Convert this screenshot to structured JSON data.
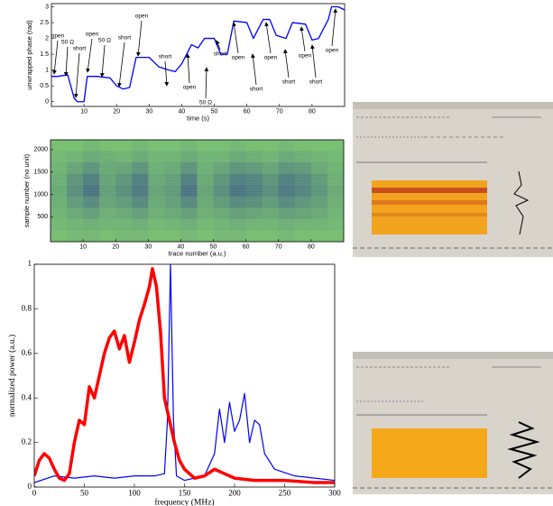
{
  "chart_data": [
    {
      "type": "line",
      "xlabel": "time (s)",
      "ylabel": "unwrapped phase (rad)",
      "xlim": [
        0,
        90
      ],
      "xticks": [
        10,
        20,
        30,
        40,
        50,
        60,
        70,
        80
      ],
      "ylim": [
        -0.15,
        3.1
      ],
      "yticks": [
        0,
        0.5,
        1,
        1.5,
        2,
        2.5,
        3
      ],
      "series": [
        {
          "color": "#0000ff",
          "x": [
            0,
            2,
            5,
            7,
            8,
            10,
            11,
            14,
            18,
            20,
            22,
            24,
            26,
            30,
            33,
            36,
            38,
            40,
            43,
            45,
            47,
            50,
            52,
            54,
            56,
            60,
            62,
            65,
            67,
            69,
            72,
            74,
            78,
            80,
            82,
            85,
            86,
            88,
            90
          ],
          "values": [
            0.8,
            0.8,
            0.85,
            0.1,
            0,
            0,
            0.8,
            0.8,
            0.75,
            0.5,
            0.4,
            0.45,
            1.4,
            1.4,
            1.1,
            1.0,
            0.95,
            1.2,
            1.8,
            1.7,
            2.0,
            2.0,
            1.5,
            1.5,
            2.55,
            2.5,
            2.0,
            2.6,
            2.6,
            2.1,
            2.0,
            2.5,
            2.45,
            1.95,
            2.0,
            2.6,
            3.0,
            3.0,
            2.9
          ]
        }
      ],
      "annotations": [
        "open",
        "50 Ω",
        "short",
        "open",
        "50 Ω",
        "short",
        "open",
        "short",
        "open",
        "50 Ω",
        "short",
        "open",
        "short",
        "open",
        "short",
        "open",
        "short",
        "open"
      ]
    },
    {
      "type": "heatmap",
      "xlabel": "trace number (a.u.)",
      "ylabel": "sample number (no unit)",
      "xlim": [
        0,
        90
      ],
      "xticks": [
        10,
        20,
        30,
        40,
        50,
        60,
        70,
        80
      ],
      "ylim": [
        -60,
        2220
      ],
      "yticks": [
        500,
        1000,
        1500,
        2000
      ],
      "colors": [
        "#7cc86e",
        "#3d5f86"
      ],
      "z": [
        [
          0.1,
          0.1,
          0.15,
          0.1,
          0.1,
          0.15,
          0.1,
          0.1,
          0.15,
          0.1,
          0.1,
          0.15,
          0.1,
          0.1,
          0.15,
          0.1,
          0.1,
          0.1
        ],
        [
          0.15,
          0.2,
          0.3,
          0.25,
          0.2,
          0.3,
          0.2,
          0.2,
          0.3,
          0.2,
          0.2,
          0.3,
          0.25,
          0.2,
          0.3,
          0.25,
          0.2,
          0.15
        ],
        [
          0.2,
          0.35,
          0.5,
          0.3,
          0.35,
          0.5,
          0.25,
          0.3,
          0.5,
          0.25,
          0.35,
          0.5,
          0.45,
          0.35,
          0.5,
          0.45,
          0.3,
          0.2
        ],
        [
          0.25,
          0.5,
          0.7,
          0.35,
          0.5,
          0.7,
          0.3,
          0.4,
          0.7,
          0.3,
          0.5,
          0.7,
          0.65,
          0.5,
          0.7,
          0.6,
          0.45,
          0.25
        ],
        [
          0.3,
          0.55,
          0.8,
          0.4,
          0.55,
          0.75,
          0.35,
          0.45,
          0.8,
          0.35,
          0.55,
          0.8,
          0.7,
          0.55,
          0.75,
          0.65,
          0.5,
          0.3
        ],
        [
          0.25,
          0.45,
          0.6,
          0.35,
          0.45,
          0.6,
          0.3,
          0.4,
          0.6,
          0.3,
          0.45,
          0.6,
          0.55,
          0.45,
          0.6,
          0.5,
          0.4,
          0.25
        ],
        [
          0.2,
          0.3,
          0.4,
          0.25,
          0.3,
          0.4,
          0.25,
          0.3,
          0.4,
          0.25,
          0.3,
          0.4,
          0.35,
          0.3,
          0.4,
          0.35,
          0.3,
          0.2
        ],
        [
          0.15,
          0.2,
          0.25,
          0.2,
          0.2,
          0.25,
          0.15,
          0.2,
          0.25,
          0.15,
          0.2,
          0.25,
          0.2,
          0.2,
          0.25,
          0.2,
          0.2,
          0.15
        ],
        [
          0.1,
          0.15,
          0.15,
          0.1,
          0.15,
          0.15,
          0.1,
          0.1,
          0.15,
          0.1,
          0.15,
          0.15,
          0.1,
          0.1,
          0.15,
          0.1,
          0.1,
          0.1
        ]
      ]
    },
    {
      "type": "line",
      "xlabel": "frequency (MHz)",
      "ylabel": "normalized power (a.u.)",
      "xlim": [
        0,
        300
      ],
      "xticks": [
        0,
        50,
        100,
        150,
        200,
        250,
        300
      ],
      "ylim": [
        0,
        1
      ],
      "yticks": [
        0,
        0.2,
        0.4,
        0.6,
        0.8,
        1
      ],
      "series": [
        {
          "color": "#0000ff",
          "x": [
            0,
            20,
            40,
            60,
            80,
            100,
            120,
            130,
            133,
            136,
            139,
            142,
            150,
            170,
            180,
            185,
            190,
            195,
            200,
            205,
            210,
            215,
            220,
            225,
            230,
            240,
            260,
            280,
            300
          ],
          "values": [
            0.02,
            0.05,
            0.04,
            0.05,
            0.04,
            0.05,
            0.05,
            0.06,
            0.3,
            1.0,
            0.3,
            0.05,
            0.03,
            0.05,
            0.15,
            0.35,
            0.2,
            0.38,
            0.25,
            0.3,
            0.42,
            0.2,
            0.3,
            0.28,
            0.15,
            0.08,
            0.05,
            0.04,
            0.03
          ]
        },
        {
          "color": "#ff0000",
          "x": [
            0,
            5,
            10,
            15,
            20,
            25,
            30,
            35,
            40,
            45,
            50,
            55,
            60,
            65,
            70,
            75,
            80,
            85,
            90,
            95,
            100,
            105,
            110,
            115,
            118,
            122,
            126,
            130,
            135,
            140,
            145,
            150,
            160,
            170,
            180,
            190,
            200,
            220,
            250,
            280,
            300
          ],
          "values": [
            0.05,
            0.12,
            0.15,
            0.13,
            0.08,
            0.04,
            0.03,
            0.06,
            0.2,
            0.3,
            0.28,
            0.45,
            0.4,
            0.5,
            0.6,
            0.67,
            0.7,
            0.62,
            0.68,
            0.56,
            0.65,
            0.75,
            0.82,
            0.9,
            0.98,
            0.9,
            0.7,
            0.4,
            0.3,
            0.2,
            0.12,
            0.08,
            0.04,
            0.05,
            0.08,
            0.06,
            0.04,
            0.03,
            0.03,
            0.02,
            0.02
          ]
        }
      ]
    }
  ]
}
